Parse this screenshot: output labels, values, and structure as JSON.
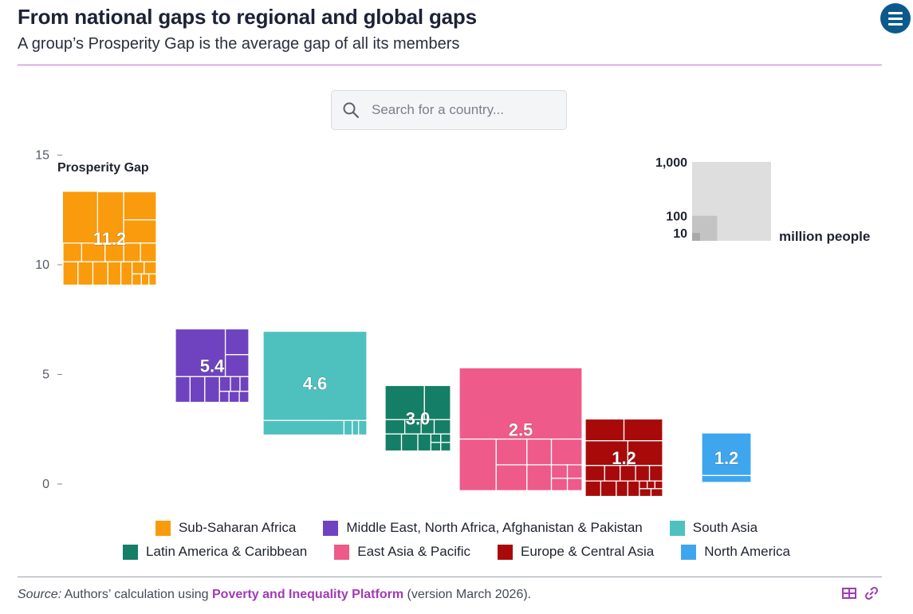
{
  "header": {
    "title": "From national gaps to regional and global gaps",
    "subtitle": "A group’s Prosperity Gap is the average gap of all its members",
    "menu_icon": "hamburger-menu-icon"
  },
  "search": {
    "placeholder": "Search for a country...",
    "icon": "search-icon"
  },
  "colors": {
    "sub_saharan_africa": "#f99b0c",
    "mena_afpak": "#6f43c0",
    "south_asia": "#4ec1bf",
    "latin_america": "#157e66",
    "east_asia_pacific": "#ee5a8a",
    "europe_central_asia": "#a80a0a",
    "north_america": "#3ea6ee",
    "size_legend": "#dedede",
    "accent_rule": "#c86dd7",
    "source_link": "#a13ab5"
  },
  "chart_data": {
    "type": "scatter",
    "title": "",
    "xlabel": "",
    "ylabel": "Prosperity Gap",
    "ylim": [
      0,
      15
    ],
    "yticks": [
      0,
      5,
      10,
      15
    ],
    "marker": "square treemap (area proportional to population)",
    "size_unit": "million people",
    "size_legend": [
      1000,
      100,
      10
    ],
    "size_legend_labels": [
      "1,000",
      "100",
      "10"
    ],
    "series": [
      {
        "name": "Sub-Saharan Africa",
        "value": 11.2,
        "label": "11.2",
        "color_key": "sub_saharan_africa"
      },
      {
        "name": "Middle East, North Africa, Afghanistan & Pakistan",
        "value": 5.4,
        "label": "5.4",
        "color_key": "mena_afpak"
      },
      {
        "name": "South Asia",
        "value": 4.6,
        "label": "4.6",
        "color_key": "south_asia"
      },
      {
        "name": "Latin America & Caribbean",
        "value": 3.0,
        "label": "3.0",
        "color_key": "latin_america"
      },
      {
        "name": "East Asia & Pacific",
        "value": 2.5,
        "label": "2.5",
        "color_key": "east_asia_pacific"
      },
      {
        "name": "Europe & Central Asia",
        "value": 1.2,
        "label": "1.2",
        "color_key": "europe_central_asia"
      },
      {
        "name": "North America",
        "value": 1.2,
        "label": "1.2",
        "color_key": "north_america"
      }
    ],
    "legend_position": "bottom"
  },
  "legend": {
    "row1": [
      {
        "label": "Sub-Saharan Africa",
        "color_key": "sub_saharan_africa"
      },
      {
        "label": "Middle East, North Africa, Afghanistan & Pakistan",
        "color_key": "mena_afpak"
      },
      {
        "label": "South Asia",
        "color_key": "south_asia"
      }
    ],
    "row2": [
      {
        "label": "Latin America & Caribbean",
        "color_key": "latin_america"
      },
      {
        "label": "East Asia & Pacific",
        "color_key": "east_asia_pacific"
      },
      {
        "label": "Europe & Central Asia",
        "color_key": "europe_central_asia"
      },
      {
        "label": "North America",
        "color_key": "north_america"
      }
    ]
  },
  "footer": {
    "source_label": "Source:",
    "source_text": " Authors’ calculation using ",
    "source_link": "Poverty and Inequality Platform",
    "source_suffix": " (version March 2026).",
    "icons": [
      "table-icon",
      "link-icon"
    ]
  }
}
